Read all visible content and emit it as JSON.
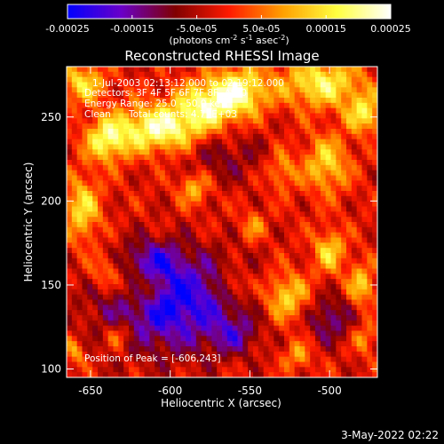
{
  "chart_data": {
    "type": "heatmap",
    "title": "Reconstructed RHESSI Image",
    "xlabel": "Heliocentric X (arcsec)",
    "ylabel": "Heliocentric Y (arcsec)",
    "xlim": [
      -665,
      -470
    ],
    "ylim": [
      95,
      280
    ],
    "x_ticks": [
      -650,
      -600,
      -550,
      -500
    ],
    "y_ticks": [
      100,
      150,
      200,
      250
    ],
    "colorbar": {
      "range": [
        -0.00025,
        0.00025
      ],
      "tick_values": [
        -0.00025,
        -0.00015,
        -5e-05,
        5e-05,
        0.00015,
        0.00025
      ],
      "tick_labels": [
        "-0.00025",
        "-0.00015",
        "-5.0e-05",
        "5.0e-05",
        "0.00015",
        "0.00025"
      ],
      "units_main": "(photons cm",
      "units_sup1": "-2",
      "units_mid1": " s",
      "units_sup2": "-1",
      "units_mid2": " asec",
      "units_sup3": "-2",
      "units_end": ")",
      "colormap": [
        "#0000ff",
        "#6a00c8",
        "#800000",
        "#ff1a00",
        "#ffa000",
        "#ffff40",
        "#ffffff"
      ]
    },
    "annotations": {
      "time_range": "1-Jul-2003 02:13:12.000 to 02:19:12.000",
      "detectors": "Detectors: 3F 4F 5F 6F 7F 8F, Att 0",
      "energy_range": "Energy Range: 25.0 - 50.0 keV",
      "method": "Clean",
      "total_counts": "Total counts: 4.77E+03",
      "peak": "Position of Peak = [-606,243]"
    },
    "peak": [
      -606,
      243
    ],
    "bright_regions": [
      {
        "x": -606,
        "y": 243,
        "sx": 20,
        "sy": 10,
        "amp": 0.00024
      },
      {
        "x": -575,
        "y": 258,
        "sx": 14,
        "sy": 10,
        "amp": 0.0002
      },
      {
        "x": -555,
        "y": 266,
        "sx": 12,
        "sy": 10,
        "amp": 0.00018
      },
      {
        "x": -640,
        "y": 236,
        "sx": 9,
        "sy": 9,
        "amp": 0.00018
      },
      {
        "x": -655,
        "y": 270,
        "sx": 10,
        "sy": 8,
        "amp": 0.00016
      },
      {
        "x": -505,
        "y": 270,
        "sx": 18,
        "sy": 10,
        "amp": 0.00019
      },
      {
        "x": -478,
        "y": 252,
        "sx": 8,
        "sy": 8,
        "amp": 0.00017
      },
      {
        "x": -502,
        "y": 222,
        "sx": 10,
        "sy": 12,
        "amp": 0.00015
      },
      {
        "x": -585,
        "y": 208,
        "sx": 7,
        "sy": 7,
        "amp": 0.00013
      },
      {
        "x": -655,
        "y": 195,
        "sx": 8,
        "sy": 14,
        "amp": 0.00016
      },
      {
        "x": -530,
        "y": 218,
        "sx": 6,
        "sy": 8,
        "amp": 0.00011
      },
      {
        "x": -640,
        "y": 157,
        "sx": 8,
        "sy": 8,
        "amp": 0.00012
      },
      {
        "x": -618,
        "y": 148,
        "sx": 9,
        "sy": 8,
        "amp": 0.00014
      },
      {
        "x": -632,
        "y": 120,
        "sx": 6,
        "sy": 6,
        "amp": 0.00011
      },
      {
        "x": -527,
        "y": 143,
        "sx": 10,
        "sy": 10,
        "amp": 0.00016
      },
      {
        "x": -560,
        "y": 150,
        "sx": 6,
        "sy": 6,
        "amp": 0.00011
      },
      {
        "x": -500,
        "y": 170,
        "sx": 7,
        "sy": 9,
        "amp": 0.00015
      },
      {
        "x": -480,
        "y": 150,
        "sx": 6,
        "sy": 9,
        "amp": 0.00014
      },
      {
        "x": -548,
        "y": 185,
        "sx": 5,
        "sy": 6,
        "amp": 0.0001
      },
      {
        "x": -660,
        "y": 110,
        "sx": 5,
        "sy": 6,
        "amp": 0.0001
      },
      {
        "x": -520,
        "y": 108,
        "sx": 6,
        "sy": 6,
        "amp": 0.00011
      },
      {
        "x": -478,
        "y": 118,
        "sx": 5,
        "sy": 6,
        "amp": 0.0001
      }
    ],
    "dark_regions": [
      {
        "x": -600,
        "y": 140,
        "sx": 30,
        "sy": 20,
        "amp": -0.00022
      },
      {
        "x": -610,
        "y": 165,
        "sx": 12,
        "sy": 8,
        "amp": -0.0001
      },
      {
        "x": -560,
        "y": 120,
        "sx": 10,
        "sy": 8,
        "amp": -0.0001
      },
      {
        "x": -500,
        "y": 130,
        "sx": 10,
        "sy": 10,
        "amp": -0.00012
      },
      {
        "x": -570,
        "y": 228,
        "sx": 20,
        "sy": 12,
        "amp": -8e-05
      }
    ]
  },
  "footer": {
    "datetime": "3-May-2022 02:22"
  }
}
